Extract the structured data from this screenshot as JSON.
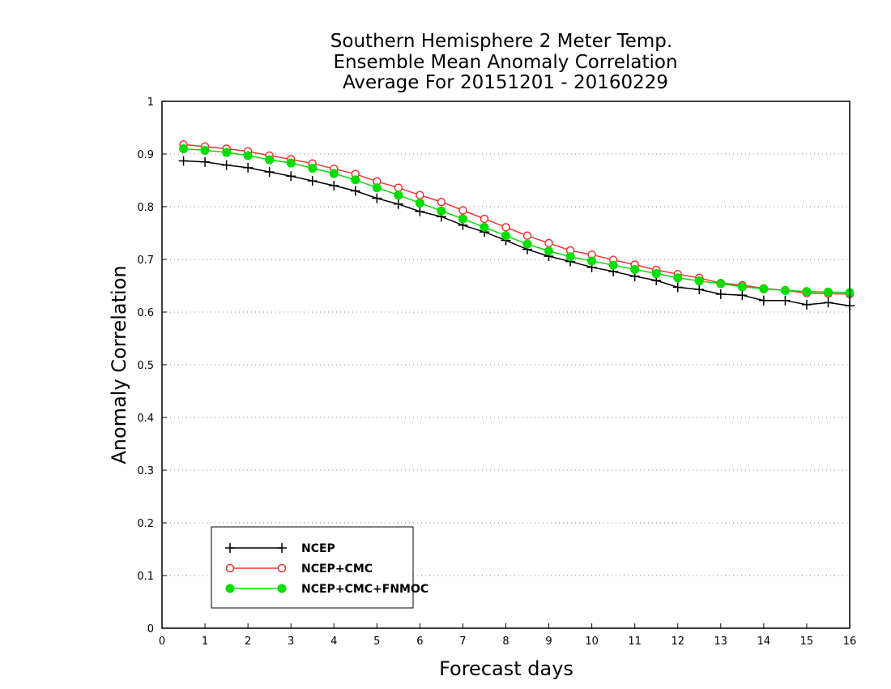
{
  "chart_data": {
    "type": "line",
    "title": [
      "Southern Hemisphere 2 Meter Temp.",
      "Ensemble Mean Anomaly Correlation",
      "Average For 20151201 - 20160229"
    ],
    "xlabel": "Forecast days",
    "ylabel": "Anomaly Correlation",
    "xlim": [
      0,
      16
    ],
    "ylim": [
      0,
      1
    ],
    "xticks": [
      0,
      1,
      2,
      3,
      4,
      5,
      6,
      7,
      8,
      9,
      10,
      11,
      12,
      13,
      14,
      15,
      16
    ],
    "yticks": [
      0,
      0.1,
      0.2,
      0.3,
      0.4,
      0.5,
      0.6,
      0.7,
      0.8,
      0.9,
      1
    ],
    "ytick_labels": [
      "0",
      "0.1",
      "0.2",
      "0.3",
      "0.4",
      "0.5",
      "0.6",
      "0.7",
      "0.8",
      "0.9",
      "1"
    ],
    "grid": "horizontal-dotted",
    "legend_position": "bottom-left",
    "x": [
      0.5,
      1,
      1.5,
      2,
      2.5,
      3,
      3.5,
      4,
      4.5,
      5,
      5.5,
      6,
      6.5,
      7,
      7.5,
      8,
      8.5,
      9,
      9.5,
      10,
      10.5,
      11,
      11.5,
      12,
      12.5,
      13,
      13.5,
      14,
      14.5,
      15,
      15.5,
      16
    ],
    "series": [
      {
        "name": "NCEP",
        "color": "#000000",
        "marker": "plus",
        "values": [
          0.887,
          0.885,
          0.879,
          0.874,
          0.866,
          0.858,
          0.849,
          0.84,
          0.83,
          0.816,
          0.805,
          0.791,
          0.781,
          0.765,
          0.752,
          0.736,
          0.719,
          0.706,
          0.696,
          0.685,
          0.677,
          0.668,
          0.66,
          0.647,
          0.643,
          0.634,
          0.632,
          0.622,
          0.622,
          0.614,
          0.618,
          0.612
        ]
      },
      {
        "name": "NCEP+CMC",
        "color": "#ee3333",
        "marker": "open-circle",
        "values": [
          0.918,
          0.914,
          0.91,
          0.905,
          0.897,
          0.89,
          0.882,
          0.872,
          0.862,
          0.848,
          0.836,
          0.822,
          0.809,
          0.793,
          0.777,
          0.761,
          0.745,
          0.731,
          0.717,
          0.709,
          0.699,
          0.69,
          0.68,
          0.672,
          0.665,
          0.655,
          0.651,
          0.645,
          0.641,
          0.636,
          0.635,
          0.634
        ]
      },
      {
        "name": "NCEP+CMC+FNMOC",
        "color": "#00dd00",
        "marker": "filled-circle",
        "values": [
          0.91,
          0.907,
          0.903,
          0.897,
          0.889,
          0.883,
          0.873,
          0.863,
          0.851,
          0.836,
          0.822,
          0.807,
          0.792,
          0.777,
          0.761,
          0.745,
          0.729,
          0.716,
          0.705,
          0.697,
          0.689,
          0.681,
          0.673,
          0.665,
          0.659,
          0.654,
          0.648,
          0.644,
          0.641,
          0.639,
          0.638,
          0.637
        ]
      }
    ]
  }
}
